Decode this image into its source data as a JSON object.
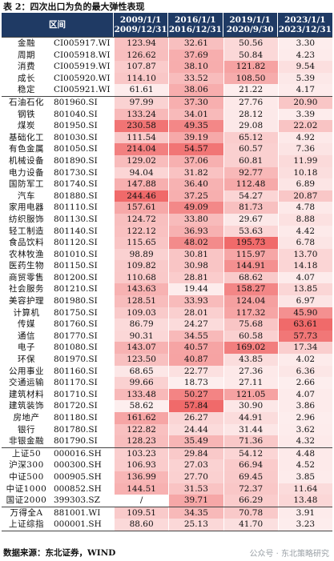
{
  "title": "表 2：四次出口为负的最大弹性表现",
  "header": {
    "col_area": "区间",
    "periods": [
      "2009/1/1\n2009/12/31",
      "2016/1/1\n2016/12/31",
      "2019/1/1\n2020/9/30",
      "2023/1/1\n2023/12/31"
    ]
  },
  "groups": [
    {
      "rows": [
        [
          "金融",
          "CI005917.WI",
          "123.94",
          "32.61",
          "50.56",
          "3.30"
        ],
        [
          "周期",
          "CI005918.WI",
          "126.62",
          "37.69",
          "50.84",
          "4.23"
        ],
        [
          "消费",
          "CI005919.WI",
          "107.87",
          "38.10",
          "121.82",
          "9.54"
        ],
        [
          "成长",
          "CI005920.WI",
          "114.10",
          "33.52",
          "108.50",
          "5.39"
        ],
        [
          "稳定",
          "CI005921.WI",
          "61.61",
          "38.06",
          "21.22",
          "4.17"
        ]
      ]
    },
    {
      "rows": [
        [
          "石油石化",
          "801960.SI",
          "97.99",
          "37.30",
          "27.76",
          "20.90"
        ],
        [
          "钢铁",
          "801040.SI",
          "133.24",
          "34.01",
          "28.12",
          "3.39"
        ],
        [
          "煤炭",
          "801950.SI",
          "230.58",
          "49.35",
          "29.08",
          "22.02"
        ],
        [
          "基础化工",
          "801030.SI",
          "111.54",
          "39.19",
          "65.12",
          "4.92"
        ],
        [
          "有色金属",
          "801050.SI",
          "214.04",
          "54.57",
          "60.57",
          "7.36"
        ],
        [
          "机械设备",
          "801890.SI",
          "129.02",
          "37.06",
          "60.81",
          "11.99"
        ],
        [
          "电力设备",
          "801730.SI",
          "94.04",
          "31.82",
          "92.77",
          "10.18"
        ],
        [
          "国防军工",
          "801740.SI",
          "147.88",
          "36.40",
          "112.48",
          "6.89"
        ],
        [
          "汽车",
          "801880.SI",
          "244.46",
          "37.25",
          "54.27",
          "20.87"
        ],
        [
          "家用电器",
          "801110.SI",
          "157.61",
          "49.09",
          "81.73",
          "4.78"
        ],
        [
          "纺织服饰",
          "801130.SI",
          "124.72",
          "33.80",
          "29.67",
          "8.88"
        ],
        [
          "轻工制造",
          "801140.SI",
          "122.12",
          "36.93",
          "53.63",
          "4.42"
        ],
        [
          "食品饮料",
          "801120.SI",
          "115.65",
          "48.02",
          "195.73",
          "6.78"
        ],
        [
          "农林牧渔",
          "801010.SI",
          "98.89",
          "30.81",
          "115.97",
          "13.70"
        ],
        [
          "医药生物",
          "801150.SI",
          "109.82",
          "30.98",
          "144.91",
          "14.18"
        ],
        [
          "商贸零售",
          "801200.SI",
          "110.68",
          "28.81",
          "68.62",
          "4.07"
        ],
        [
          "社会服务",
          "801210.SI",
          "143.63",
          "19.44",
          "158.27",
          "13.85"
        ],
        [
          "美容护理",
          "801980.SI",
          "128.51",
          "33.93",
          "124.04",
          "6.97"
        ],
        [
          "计算机",
          "801750.SI",
          "109.03",
          "28.01",
          "117.32",
          "45.90"
        ],
        [
          "传媒",
          "801760.SI",
          "86.79",
          "24.27",
          "75.68",
          "63.61"
        ],
        [
          "通信",
          "801770.SI",
          "90.31",
          "34.55",
          "60.58",
          "57.73"
        ],
        [
          "电子",
          "801080.SI",
          "143.07",
          "40.57",
          "169.02",
          "17.34"
        ],
        [
          "环保",
          "801970.SI",
          "123.50",
          "40.87",
          "43.85",
          "4.02"
        ],
        [
          "公用事业",
          "801160.SI",
          "68.65",
          "22.77",
          "27.36",
          "6.36"
        ],
        [
          "交通运输",
          "801170.SI",
          "99.66",
          "18.73",
          "27.11",
          "2.66"
        ],
        [
          "建筑材料",
          "801710.SI",
          "133.48",
          "50.27",
          "121.05",
          "4.07"
        ],
        [
          "建筑装饰",
          "801720.SI",
          "58.62",
          "57.84",
          "30.90",
          "3.86"
        ],
        [
          "房地产",
          "801180.SI",
          "161.62",
          "26.27",
          "44.91",
          "2.96"
        ],
        [
          "银行",
          "801780.SI",
          "122.82",
          "24.44",
          "31.44",
          "3.62"
        ],
        [
          "非银金融",
          "801790.SI",
          "128.23",
          "35.49",
          "71.36",
          "4.32"
        ]
      ]
    },
    {
      "rows": [
        [
          "上证50",
          "000016.SH",
          "103.23",
          "29.84",
          "54.12",
          "4.48"
        ],
        [
          "沪深300",
          "000300.SH",
          "106.93",
          "27.03",
          "66.94",
          "4.52"
        ],
        [
          "中证500",
          "000905.SH",
          "136.99",
          "27.70",
          "69.45",
          "3.85"
        ],
        [
          "中证1000",
          "000852.SH",
          "144.51",
          "31.53",
          "72.37",
          "11.64"
        ],
        [
          "国证2000",
          "399303.SZ",
          "/",
          "39.71",
          "66.29",
          "13.48"
        ]
      ]
    },
    {
      "rows": [
        [
          "万得全A",
          "881001.WI",
          "109.51",
          "34.35",
          "70.78",
          "3.91"
        ],
        [
          "上证综指",
          "000001.SH",
          "88.60",
          "25.13",
          "41.70",
          "3.23"
        ]
      ]
    }
  ],
  "colors": {
    "header_bg": "#1f3a64",
    "heat_low": "#fdeeee",
    "heat_high": "#f06a6a"
  },
  "source": "数据来源：东北证券，WIND",
  "watermark": "公众号 · 东北策略研究"
}
